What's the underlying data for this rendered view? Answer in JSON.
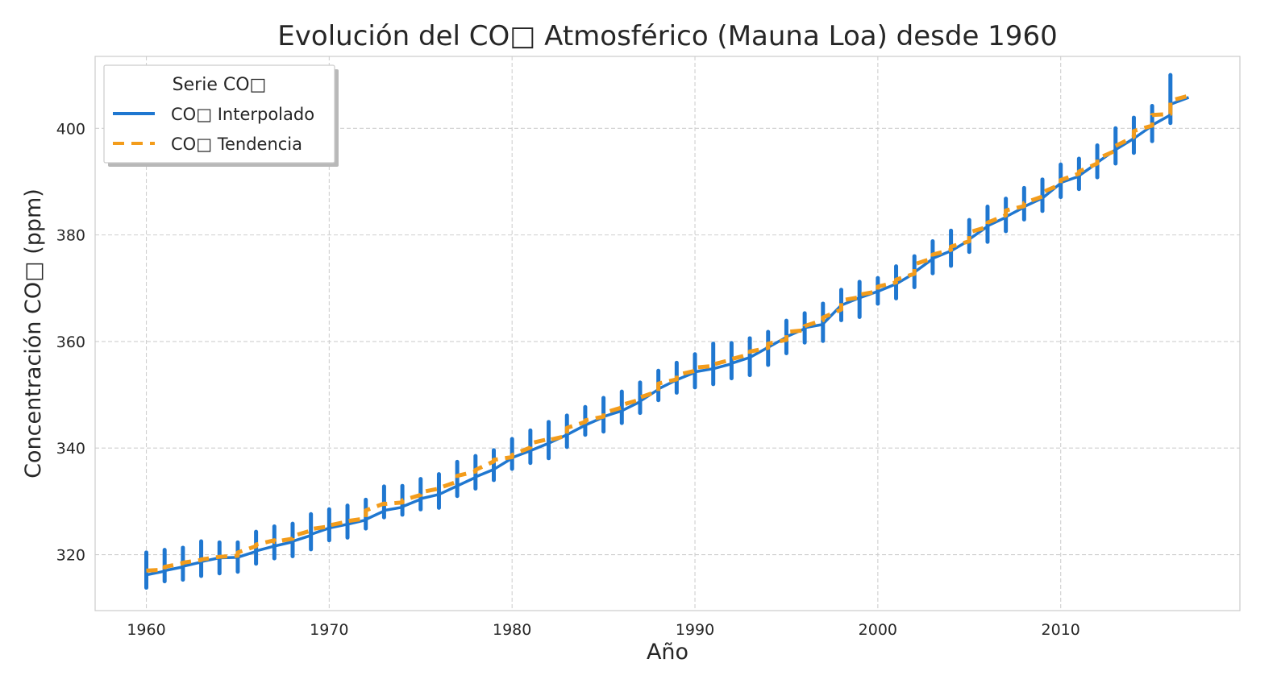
{
  "chart_data": {
    "type": "line",
    "title": "Evolución del CO□ Atmosférico (Mauna Loa) desde 1960",
    "xlabel": "Año",
    "ylabel": "Concentración CO□ (ppm)",
    "xlim": [
      1957.2,
      2019.8
    ],
    "ylim": [
      309.5,
      413.5
    ],
    "xticks": [
      1960,
      1970,
      1980,
      1990,
      2000,
      2010
    ],
    "yticks": [
      320,
      340,
      360,
      380,
      400
    ],
    "grid": true,
    "legend": {
      "title": "Serie CO□",
      "position": "top-left"
    },
    "series": [
      {
        "name": "CO□ Interpolado",
        "color": "#1f77d0",
        "style": "solid",
        "years": [
          1960,
          1961,
          1962,
          1963,
          1964,
          1965,
          1966,
          1967,
          1968,
          1969,
          1970,
          1971,
          1972,
          1973,
          1974,
          1975,
          1976,
          1977,
          1978,
          1979,
          1980,
          1981,
          1982,
          1983,
          1984,
          1985,
          1986,
          1987,
          1988,
          1989,
          1990,
          1991,
          1992,
          1993,
          1994,
          1995,
          1996,
          1997,
          1998,
          1999,
          2000,
          2001,
          2002,
          2003,
          2004,
          2005,
          2006,
          2007,
          2008,
          2009,
          2010,
          2011,
          2012,
          2013,
          2014,
          2015,
          2016
        ],
        "start_values": [
          316.2,
          317.0,
          317.8,
          318.7,
          319.4,
          319.5,
          320.7,
          321.6,
          322.5,
          323.8,
          325.0,
          325.7,
          326.6,
          328.3,
          329.0,
          330.5,
          331.3,
          332.9,
          334.6,
          336.0,
          338.2,
          339.5,
          340.9,
          342.5,
          344.3,
          345.9,
          347.0,
          348.8,
          351.1,
          352.8,
          354.3,
          354.9,
          355.9,
          357.0,
          358.9,
          360.9,
          362.6,
          363.3,
          366.8,
          368.2,
          369.4,
          370.8,
          373.0,
          375.6,
          377.0,
          379.2,
          381.7,
          383.4,
          385.3,
          386.9,
          389.8,
          391.1,
          393.6,
          396.0,
          398.1,
          400.6,
          404.5
        ],
        "end_values": [
          316.9,
          317.7,
          318.6,
          319.4,
          319.5,
          320.6,
          321.6,
          322.4,
          323.6,
          325.0,
          325.7,
          326.5,
          328.2,
          328.9,
          330.4,
          331.3,
          332.9,
          334.5,
          336.0,
          338.1,
          339.5,
          340.9,
          342.5,
          344.3,
          345.8,
          347.0,
          348.7,
          351.0,
          352.8,
          354.2,
          354.9,
          355.8,
          357.0,
          358.9,
          360.8,
          362.4,
          363.2,
          366.8,
          368.2,
          369.4,
          370.8,
          372.8,
          375.5,
          377.0,
          379.0,
          381.6,
          383.3,
          385.2,
          386.9,
          389.7,
          391.0,
          393.5,
          396.0,
          398.1,
          400.5,
          402.5,
          405.8
        ],
        "annual_min": [
          313.8,
          315.0,
          315.3,
          316.0,
          316.5,
          316.8,
          318.3,
          319.3,
          319.7,
          321.0,
          322.7,
          323.2,
          324.9,
          327.0,
          327.5,
          328.5,
          328.8,
          331.0,
          332.4,
          334.0,
          336.1,
          337.2,
          338.1,
          340.2,
          342.5,
          343.1,
          344.7,
          346.6,
          349.0,
          350.4,
          351.4,
          352.0,
          353.1,
          353.7,
          355.6,
          357.8,
          359.8,
          360.1,
          364.0,
          364.6,
          367.1,
          368.1,
          370.2,
          372.8,
          374.2,
          376.8,
          378.7,
          380.7,
          382.9,
          384.5,
          387.1,
          388.6,
          390.8,
          393.4,
          395.4,
          397.6,
          401.0
        ],
        "annual_max": [
          320.4,
          320.9,
          321.3,
          322.5,
          322.3,
          322.3,
          324.3,
          325.3,
          325.8,
          327.6,
          328.5,
          329.2,
          330.3,
          332.8,
          332.9,
          334.2,
          335.1,
          337.4,
          338.5,
          339.6,
          341.7,
          343.3,
          344.9,
          346.1,
          347.7,
          349.4,
          350.6,
          352.3,
          354.5,
          356.0,
          357.6,
          359.6,
          359.7,
          360.6,
          361.8,
          363.9,
          365.3,
          367.1,
          369.7,
          371.2,
          371.9,
          374.1,
          376.0,
          378.8,
          380.8,
          382.8,
          385.3,
          386.8,
          388.8,
          390.4,
          393.2,
          394.3,
          396.8,
          400.0,
          402.0,
          404.2,
          410.0
        ]
      },
      {
        "name": "CO□ Tendencia",
        "color": "#f39c1b",
        "style": "dashed",
        "years": [
          1960,
          1961,
          1962,
          1963,
          1964,
          1965,
          1966,
          1967,
          1968,
          1969,
          1970,
          1971,
          1972,
          1973,
          1974,
          1975,
          1976,
          1977,
          1978,
          1979,
          1980,
          1981,
          1982,
          1983,
          1984,
          1985,
          1986,
          1987,
          1988,
          1989,
          1990,
          1991,
          1992,
          1993,
          1994,
          1995,
          1996,
          1997,
          1998,
          1999,
          2000,
          2001,
          2002,
          2003,
          2004,
          2005,
          2006,
          2007,
          2008,
          2009,
          2010,
          2011,
          2012,
          2013,
          2014,
          2015,
          2016
        ],
        "start_values": [
          317.0,
          317.7,
          318.5,
          319.1,
          319.6,
          320.4,
          321.9,
          322.4,
          323.5,
          324.8,
          325.5,
          326.3,
          328.3,
          329.5,
          330.2,
          331.7,
          332.5,
          334.8,
          335.9,
          337.8,
          338.7,
          340.9,
          341.5,
          343.8,
          345.2,
          346.6,
          348.1,
          349.5,
          352.1,
          353.7,
          355.1,
          355.7,
          356.7,
          358.1,
          359.6,
          361.8,
          362.9,
          364.5,
          367.7,
          368.8,
          370.3,
          371.6,
          374.5,
          376.3,
          377.8,
          380.5,
          382.3,
          384.6,
          386.0,
          388.0,
          390.3,
          391.9,
          394.3,
          396.7,
          399.5,
          402.5,
          405.2
        ],
        "end_values": [
          317.2,
          318.4,
          319.0,
          319.6,
          319.8,
          321.6,
          322.7,
          323.0,
          324.5,
          325.3,
          326.2,
          326.8,
          329.6,
          329.8,
          331.2,
          332.4,
          333.7,
          335.6,
          337.5,
          338.3,
          340.1,
          341.7,
          342.3,
          344.9,
          345.9,
          347.6,
          349.1,
          350.7,
          352.9,
          354.5,
          355.4,
          356.6,
          357.6,
          358.8,
          360.3,
          362.1,
          364.0,
          366.0,
          368.3,
          369.4,
          371.1,
          372.7,
          375.6,
          377.2,
          378.8,
          381.5,
          383.7,
          385.4,
          387.2,
          389.5,
          391.5,
          393.4,
          395.8,
          398.4,
          400.5,
          402.7,
          406.1
        ]
      }
    ]
  }
}
